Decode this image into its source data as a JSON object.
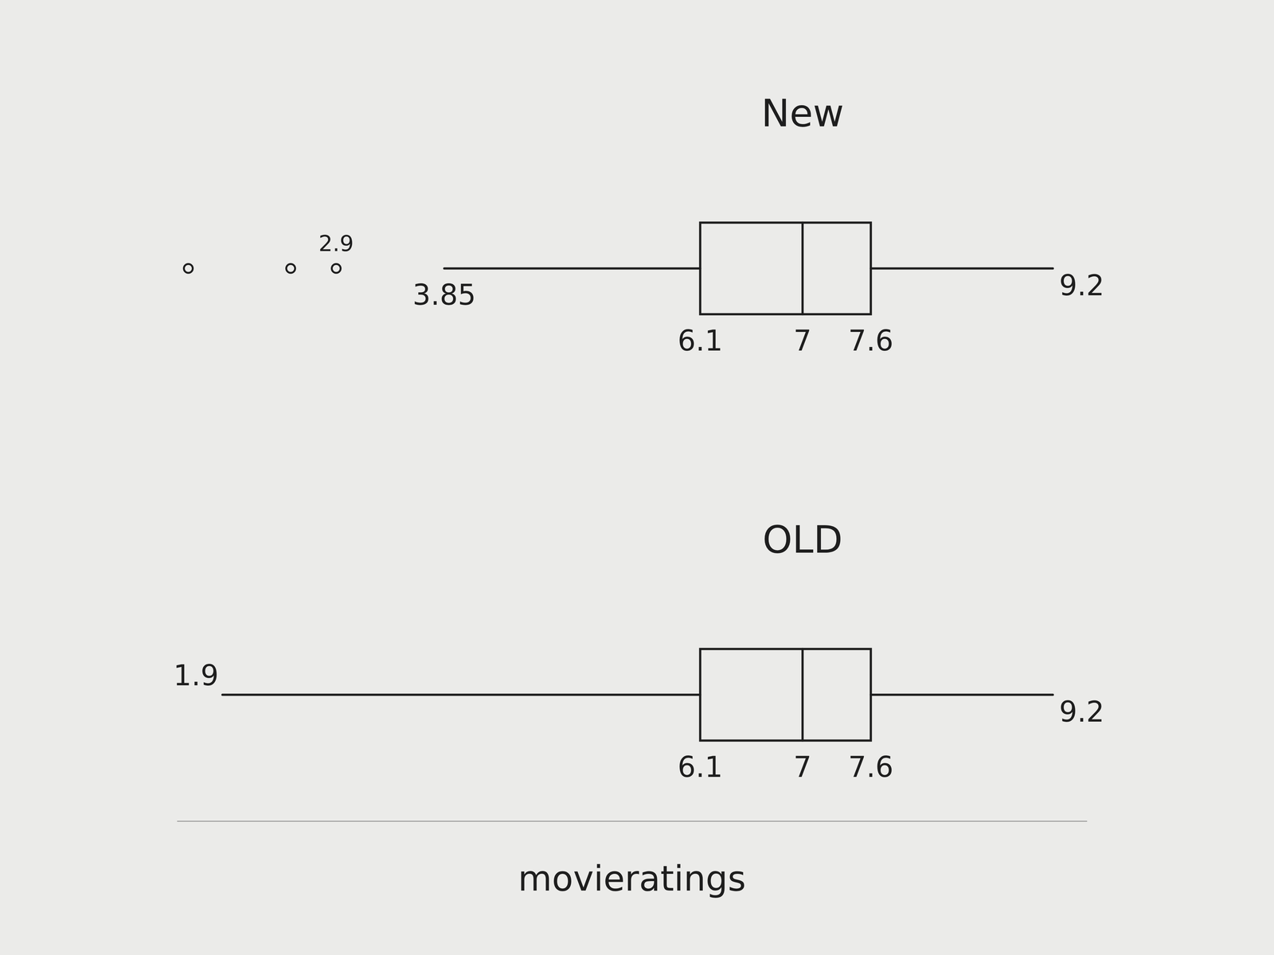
{
  "chart_data": {
    "type": "box",
    "orientation": "horizontal",
    "x_label": "movieratings",
    "xlim": [
      1.5,
      9.5
    ],
    "tick_labels": false,
    "data_labels": true,
    "series": [
      {
        "name": "New",
        "min": 3.85,
        "q1": 6.1,
        "median": 7,
        "q3": 7.6,
        "max": 9.2,
        "outliers": [
          1.6,
          2.5,
          2.9
        ],
        "outlier_labels": [
          null,
          null,
          "2.9"
        ]
      },
      {
        "name": "OLD",
        "min": 1.9,
        "q1": 6.1,
        "median": 7,
        "q3": 7.6,
        "max": 9.2,
        "outliers": [],
        "outlier_labels": []
      }
    ]
  }
}
